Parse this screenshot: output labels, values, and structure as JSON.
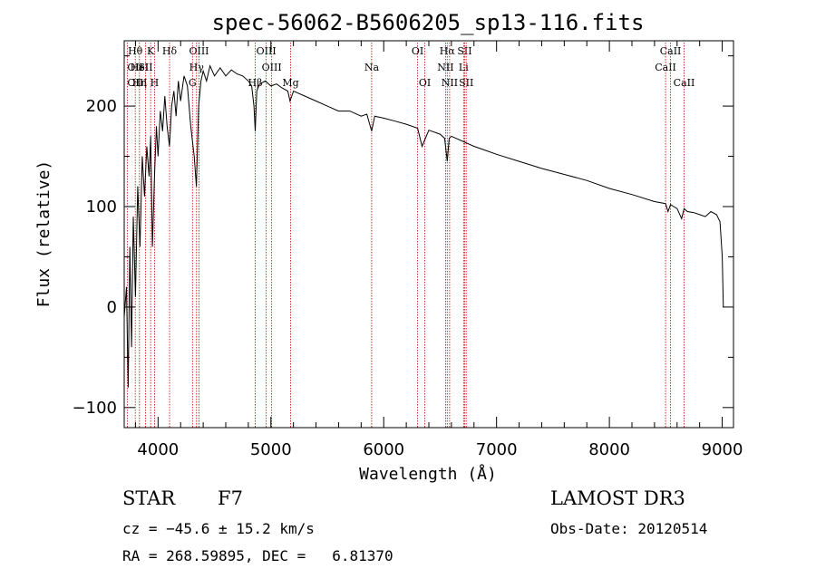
{
  "chart_data": {
    "type": "line",
    "title": "spec-56062-B5606205_sp13-116.fits",
    "xlabel": "Wavelength (Å)",
    "ylabel": "Flux (relative)",
    "xlim": [
      3700,
      9100
    ],
    "ylim": [
      -120,
      265
    ],
    "xticks": [
      4000,
      5000,
      6000,
      7000,
      8000,
      9000
    ],
    "yticks": [
      -100,
      0,
      100,
      200
    ],
    "grid": false,
    "series": [
      {
        "name": "spectrum",
        "x": [
          3700,
          3720,
          3735,
          3750,
          3765,
          3780,
          3800,
          3820,
          3840,
          3860,
          3880,
          3900,
          3920,
          3935,
          3950,
          3968,
          3985,
          4000,
          4020,
          4040,
          4060,
          4080,
          4101,
          4120,
          4140,
          4160,
          4180,
          4200,
          4230,
          4260,
          4290,
          4320,
          4340,
          4360,
          4380,
          4400,
          4430,
          4460,
          4500,
          4550,
          4600,
          4650,
          4700,
          4750,
          4800,
          4830,
          4850,
          4861,
          4875,
          4900,
          4950,
          5000,
          5050,
          5100,
          5150,
          5170,
          5200,
          5300,
          5400,
          5500,
          5600,
          5700,
          5800,
          5850,
          5893,
          5920,
          6000,
          6100,
          6200,
          6300,
          6340,
          6400,
          6500,
          6540,
          6563,
          6580,
          6600,
          6700,
          6800,
          6900,
          7000,
          7200,
          7400,
          7600,
          7800,
          8000,
          8200,
          8400,
          8498,
          8520,
          8542,
          8570,
          8600,
          8640,
          8662,
          8690,
          8750,
          8800,
          8850,
          8900,
          8950,
          8980,
          9000,
          9010
        ],
        "values": [
          -10,
          20,
          -80,
          60,
          -40,
          90,
          10,
          120,
          60,
          150,
          110,
          160,
          130,
          170,
          60,
          130,
          180,
          150,
          195,
          175,
          210,
          180,
          160,
          200,
          215,
          190,
          225,
          205,
          230,
          220,
          180,
          150,
          120,
          200,
          225,
          235,
          225,
          240,
          230,
          238,
          230,
          236,
          232,
          230,
          225,
          220,
          200,
          175,
          215,
          222,
          225,
          220,
          222,
          218,
          215,
          205,
          215,
          210,
          205,
          200,
          195,
          195,
          190,
          192,
          175,
          190,
          188,
          185,
          182,
          178,
          160,
          176,
          172,
          168,
          145,
          168,
          170,
          165,
          160,
          156,
          152,
          145,
          138,
          132,
          126,
          118,
          112,
          105,
          103,
          95,
          102,
          100,
          98,
          88,
          98,
          95,
          94,
          92,
          90,
          95,
          92,
          85,
          50,
          0
        ]
      }
    ],
    "lines": [
      {
        "label": "Hθ",
        "x": 3798,
        "row": 0,
        "anchor": "middle"
      },
      {
        "label": "OII",
        "x": 3727,
        "row": 1,
        "anchor": "start"
      },
      {
        "label": "OIII",
        "x": 3727,
        "row": 2,
        "anchor": "start"
      },
      {
        "label": "HeI",
        "x": 3835,
        "row": 1,
        "anchor": "middle"
      },
      {
        "label": "Hη",
        "x": 3835,
        "row": 2,
        "anchor": "middle"
      },
      {
        "label": "K",
        "x": 3934,
        "row": 0,
        "anchor": "middle"
      },
      {
        "label": "SII",
        "x": 3889,
        "row": 1,
        "anchor": "middle"
      },
      {
        "label": "H",
        "x": 3969,
        "row": 2,
        "anchor": "middle"
      },
      {
        "label": "Hδ",
        "x": 4102,
        "row": 0,
        "anchor": "middle"
      },
      {
        "label": "OIII",
        "x": 4363,
        "row": 0,
        "anchor": "middle"
      },
      {
        "label": "Hγ",
        "x": 4341,
        "row": 1,
        "anchor": "middle"
      },
      {
        "label": "G",
        "x": 4305,
        "row": 2,
        "anchor": "middle"
      },
      {
        "label": "OIII",
        "x": 4959,
        "row": 0,
        "anchor": "middle"
      },
      {
        "label": "OIII",
        "x": 5007,
        "row": 1,
        "anchor": "middle"
      },
      {
        "label": "Hβ",
        "x": 4861,
        "row": 2,
        "anchor": "middle"
      },
      {
        "label": "Mg",
        "x": 5175,
        "row": 2,
        "anchor": "middle"
      },
      {
        "label": "Na",
        "x": 5893,
        "row": 1,
        "anchor": "middle"
      },
      {
        "label": "OI",
        "x": 6300,
        "row": 0,
        "anchor": "middle"
      },
      {
        "label": "OI",
        "x": 6364,
        "row": 2,
        "anchor": "middle"
      },
      {
        "label": "Hα",
        "x": 6563,
        "row": 0,
        "anchor": "middle"
      },
      {
        "label": "NII",
        "x": 6548,
        "row": 1,
        "anchor": "middle"
      },
      {
        "label": "NII",
        "x": 6584,
        "row": 2,
        "anchor": "middle"
      },
      {
        "label": "SII",
        "x": 6717,
        "row": 0,
        "anchor": "middle"
      },
      {
        "label": "Li",
        "x": 6708,
        "row": 1,
        "anchor": "middle"
      },
      {
        "label": "SII",
        "x": 6731,
        "row": 2,
        "anchor": "middle"
      },
      {
        "label": "CaII",
        "x": 8498,
        "row": 1,
        "anchor": "middle"
      },
      {
        "label": "CaII",
        "x": 8542,
        "row": 0,
        "anchor": "middle"
      },
      {
        "label": "CaII",
        "x": 8662,
        "row": 2,
        "anchor": "middle"
      }
    ]
  },
  "info": {
    "object_class": "STAR",
    "subclass": "F7",
    "survey": "LAMOST DR3",
    "redshift": "cz = −45.6 ± 15.2 km/s",
    "obs_date": "Obs-Date: 20120514",
    "coords": "RA = 268.59895, DEC =   6.81370"
  },
  "colors": {
    "axis": "#000000",
    "spectrum": "#000000",
    "line_marker": "#cc0000"
  }
}
